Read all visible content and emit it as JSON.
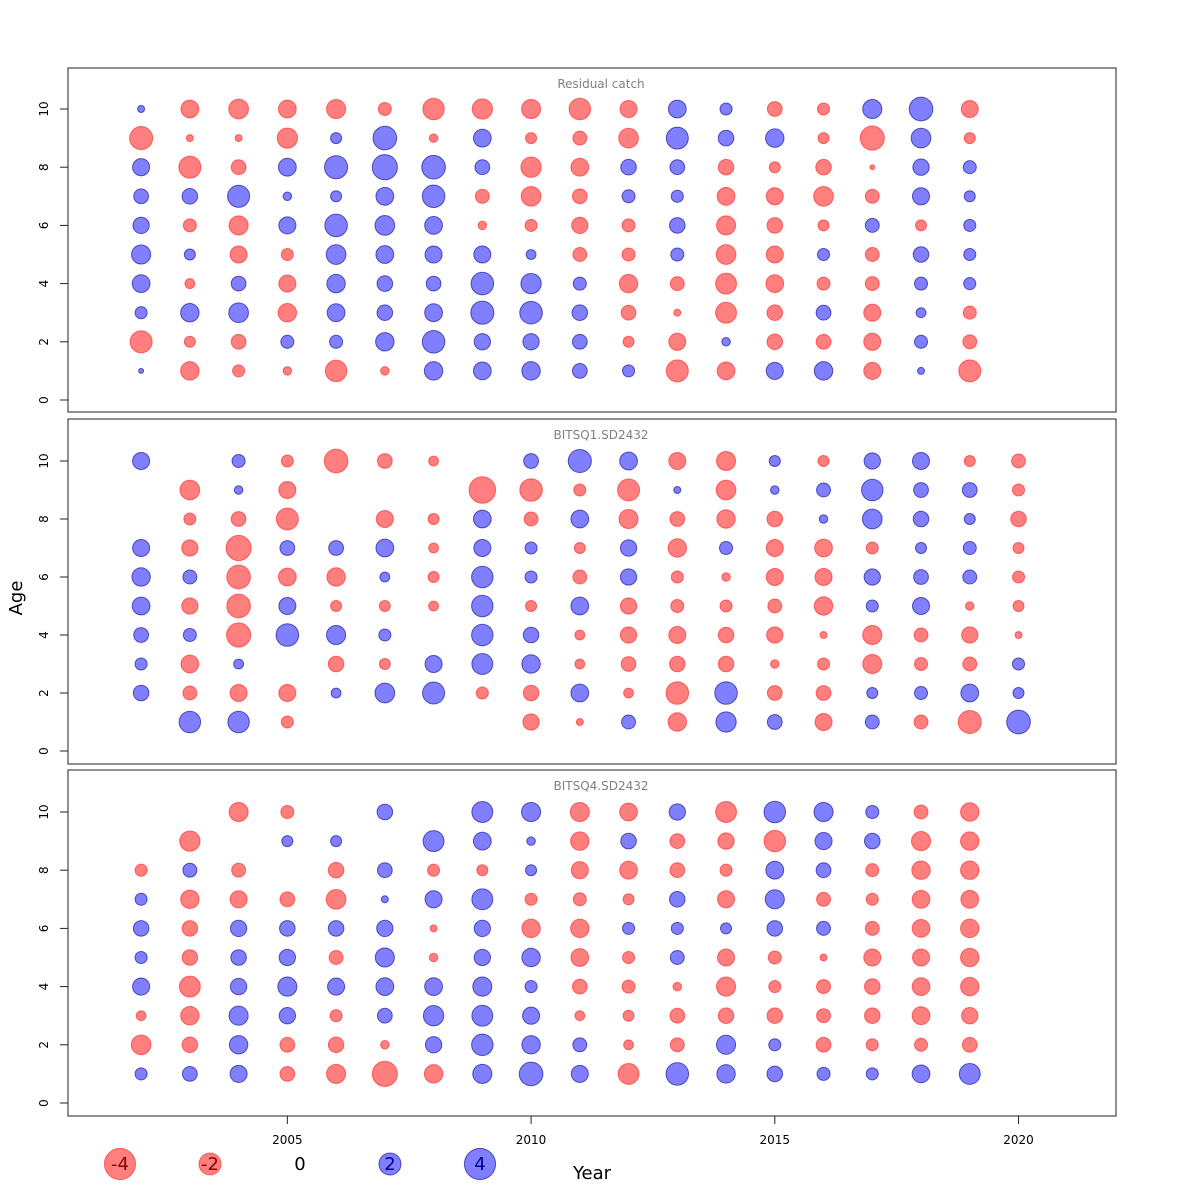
{
  "chart_data": {
    "type": "scatter",
    "style": "bubble",
    "xlabel": "Year",
    "ylabel": "Age",
    "xlim": [
      2000.5,
      2022.0
    ],
    "ylim": [
      -0.3,
      11.2
    ],
    "x_ticks": [
      2005,
      2010,
      2015,
      2020
    ],
    "y_ticks": [
      0,
      2,
      4,
      6,
      8,
      10
    ],
    "grid": false,
    "colors": {
      "negative": "#ff8080",
      "positive": "#8080ff",
      "positive_stroke": "#3333aa"
    },
    "legend": {
      "placement": "bottom-left",
      "items": [
        {
          "label": "-4",
          "value": -4
        },
        {
          "label": "-2",
          "value": -2
        },
        {
          "label": "0",
          "value": 0
        },
        {
          "label": "2",
          "value": 2
        },
        {
          "label": "4",
          "value": 4
        }
      ]
    },
    "panels": [
      {
        "title": "Residual catch",
        "years": [
          2002,
          2003,
          2004,
          2005,
          2006,
          2007,
          2008,
          2009,
          2010,
          2011,
          2012,
          2013,
          2014,
          2015,
          2016,
          2017,
          2018,
          2019
        ],
        "ages": [
          1,
          2,
          3,
          4,
          5,
          6,
          7,
          8,
          9,
          10
        ],
        "residuals": [
          [
            0.1,
            -2.0,
            0.6,
            1.3,
            1.5,
            1.1,
            0.9,
            1.2,
            -2.2,
            0.2
          ],
          [
            -1.4,
            -0.5,
            1.4,
            -0.4,
            0.5,
            -0.7,
            1.0,
            -2.0,
            -0.2,
            -1.3
          ],
          [
            -0.6,
            -0.9,
            1.6,
            0.9,
            -1.2,
            -1.5,
            2.0,
            -0.9,
            -0.2,
            -1.6
          ],
          [
            -0.3,
            0.7,
            -1.4,
            -1.2,
            -0.6,
            1.2,
            0.3,
            1.3,
            -1.7,
            -1.3
          ],
          [
            -1.9,
            0.7,
            1.3,
            1.4,
            1.6,
            2.1,
            0.5,
            2.2,
            0.5,
            -1.5
          ],
          [
            -0.3,
            1.4,
            1.0,
            1.0,
            1.3,
            1.6,
            1.3,
            2.6,
            2.3,
            -0.7
          ],
          [
            1.4,
            2.1,
            1.3,
            0.9,
            1.2,
            1.3,
            2.1,
            2.3,
            -0.3,
            -1.9
          ],
          [
            1.3,
            1.1,
            2.2,
            2.1,
            1.2,
            -0.3,
            -0.8,
            0.9,
            1.3,
            -1.7
          ],
          [
            1.4,
            1.1,
            2.1,
            1.7,
            0.4,
            -0.6,
            -1.6,
            -1.7,
            -0.5,
            -1.5
          ],
          [
            0.9,
            0.9,
            1.0,
            0.7,
            -0.8,
            -1.1,
            -0.9,
            -1.3,
            -0.8,
            -1.9
          ],
          [
            0.6,
            -0.5,
            -0.9,
            -1.4,
            -0.7,
            -0.7,
            0.7,
            1.0,
            -1.6,
            -1.2
          ],
          [
            -2.0,
            -1.2,
            -0.2,
            -0.8,
            0.7,
            1.0,
            0.6,
            0.9,
            2.0,
            1.3
          ],
          [
            -1.3,
            0.3,
            -1.8,
            -1.8,
            -1.6,
            -1.5,
            -1.3,
            -1.0,
            1.0,
            0.6
          ],
          [
            1.2,
            -1.0,
            -1.0,
            -1.3,
            -1.2,
            -1.0,
            -1.2,
            -0.5,
            1.4,
            -0.9
          ],
          [
            1.4,
            -0.9,
            0.9,
            -0.7,
            0.6,
            -0.5,
            -1.6,
            -1.0,
            -0.5,
            -0.6
          ],
          [
            -1.2,
            -1.2,
            -1.2,
            -0.8,
            -0.8,
            0.8,
            -0.8,
            -0.1,
            -2.4,
            1.5
          ],
          [
            0.2,
            0.7,
            0.4,
            0.7,
            1.0,
            -0.5,
            1.2,
            1.1,
            1.6,
            2.3
          ],
          [
            -2.0,
            -0.8,
            -0.7,
            0.6,
            0.6,
            0.6,
            0.5,
            0.7,
            -0.5,
            -1.2
          ]
        ]
      },
      {
        "title": "BITSQ1.SD2432",
        "years": [
          2002,
          2003,
          2004,
          2005,
          2006,
          2007,
          2008,
          2009,
          2010,
          2011,
          2012,
          2013,
          2014,
          2015,
          2016,
          2017,
          2018,
          2019,
          2020
        ],
        "ages": [
          1,
          2,
          3,
          4,
          5,
          6,
          7,
          8,
          9,
          10
        ],
        "residuals": [
          [
            null,
            1.0,
            0.6,
            0.9,
            1.3,
            1.4,
            1.2,
            null,
            null,
            1.2
          ],
          [
            1.9,
            -0.8,
            -1.3,
            0.7,
            -1.1,
            0.8,
            -1.1,
            -0.6,
            -1.6,
            null
          ],
          [
            1.9,
            -1.2,
            0.4,
            -2.4,
            -2.3,
            -2.3,
            -2.6,
            -0.9,
            0.3,
            0.7
          ],
          [
            -0.6,
            -1.2,
            null,
            2.1,
            1.2,
            -1.3,
            0.9,
            -2.0,
            -1.2,
            -0.6
          ],
          [
            null,
            0.4,
            -1.0,
            1.5,
            -0.5,
            -1.4,
            0.9,
            null,
            null,
            -2.3
          ],
          [
            null,
            1.6,
            -0.5,
            0.6,
            -0.5,
            0.4,
            1.3,
            -1.2,
            null,
            -0.9
          ],
          [
            null,
            2.0,
            1.2,
            null,
            -0.4,
            -0.5,
            -0.4,
            -0.5,
            null,
            -0.4
          ],
          [
            null,
            -0.6,
            1.8,
            1.9,
            1.9,
            1.9,
            1.2,
            1.3,
            -2.9,
            null
          ],
          [
            -1.1,
            -1.0,
            1.4,
            1.0,
            -0.5,
            0.6,
            0.6,
            -0.8,
            -2.1,
            0.9
          ],
          [
            -0.2,
            1.3,
            -0.4,
            -0.4,
            1.3,
            -0.8,
            -0.5,
            1.3,
            -0.6,
            2.2
          ],
          [
            0.8,
            -0.4,
            -0.9,
            -1.1,
            -1.1,
            1.1,
            1.1,
            -1.5,
            -2.0,
            1.3
          ],
          [
            -1.4,
            -2.1,
            -1.0,
            -1.2,
            -0.7,
            -0.6,
            -1.4,
            -0.9,
            0.2,
            -1.2
          ],
          [
            1.7,
            2.1,
            -1.0,
            -1.0,
            -0.6,
            -0.3,
            0.7,
            -1.4,
            -1.6,
            -1.5
          ],
          [
            0.9,
            -0.9,
            -0.3,
            -1.1,
            -0.8,
            -1.2,
            -1.2,
            -1.0,
            0.3,
            0.5
          ],
          [
            -1.2,
            -0.9,
            -0.6,
            -0.2,
            -1.4,
            -1.2,
            -1.3,
            0.3,
            0.8,
            -0.5
          ],
          [
            0.8,
            0.5,
            -1.5,
            -1.5,
            0.6,
            1.1,
            -0.6,
            1.6,
            1.9,
            1.1
          ],
          [
            -0.8,
            0.7,
            -0.7,
            -0.8,
            1.2,
            0.9,
            0.5,
            1.0,
            0.9,
            1.2
          ],
          [
            -2.2,
            1.3,
            -0.8,
            -1.1,
            -0.3,
            0.8,
            0.7,
            0.5,
            0.9,
            -0.5
          ],
          [
            2.3,
            0.5,
            0.6,
            -0.2,
            -0.5,
            -0.6,
            -0.5,
            -1.0,
            -0.6,
            -0.8
          ]
        ]
      },
      {
        "title": "BITSQ4.SD2432",
        "years": [
          2002,
          2003,
          2004,
          2005,
          2006,
          2007,
          2008,
          2009,
          2010,
          2011,
          2012,
          2013,
          2014,
          2015,
          2016,
          2017,
          2018,
          2019
        ],
        "ages": [
          1,
          2,
          3,
          4,
          5,
          6,
          7,
          8,
          9,
          10
        ],
        "residuals": [
          [
            0.6,
            -1.6,
            -0.4,
            1.2,
            0.6,
            1.0,
            0.6,
            -0.6,
            null,
            null
          ],
          [
            0.9,
            -1.0,
            -1.4,
            -1.8,
            -1.0,
            -1.0,
            -1.4,
            0.8,
            -1.7,
            null
          ],
          [
            1.2,
            1.4,
            1.5,
            1.1,
            1.0,
            1.1,
            -1.2,
            -0.8,
            null,
            -1.5
          ],
          [
            -0.9,
            -0.9,
            1.1,
            1.5,
            1.1,
            1.0,
            -0.9,
            null,
            0.5,
            -0.7
          ],
          [
            -1.5,
            -1.0,
            -0.6,
            1.2,
            -0.8,
            1.0,
            -1.6,
            -1.0,
            0.5,
            null
          ],
          [
            -2.6,
            -0.3,
            0.9,
            1.3,
            1.5,
            1.1,
            0.2,
            0.9,
            null,
            1.0
          ],
          [
            -1.4,
            1.1,
            1.7,
            1.3,
            -0.3,
            -0.2,
            1.2,
            -0.6,
            1.8,
            null
          ],
          [
            1.5,
            1.9,
            1.8,
            1.5,
            1.1,
            1.1,
            1.8,
            -0.5,
            1.3,
            1.8
          ],
          [
            2.3,
            1.4,
            1.2,
            0.6,
            1.4,
            -1.4,
            -0.6,
            0.5,
            0.3,
            1.5
          ],
          [
            1.2,
            0.8,
            -0.4,
            -0.9,
            -1.3,
            -1.4,
            -0.7,
            -1.2,
            -1.4,
            -1.5
          ],
          [
            -1.8,
            -0.4,
            -0.5,
            -0.7,
            -0.6,
            0.6,
            -0.5,
            -1.3,
            1.0,
            -1.3
          ],
          [
            2.1,
            -0.8,
            -0.9,
            -0.3,
            0.8,
            0.6,
            1.0,
            -0.9,
            -0.9,
            1.1
          ],
          [
            1.4,
            1.5,
            -1.0,
            -1.5,
            -1.2,
            0.5,
            -1.2,
            -0.6,
            -1.1,
            -1.8
          ],
          [
            1.0,
            0.6,
            -1.0,
            -0.6,
            -0.7,
            1.0,
            1.5,
            1.3,
            -1.9,
            1.9
          ],
          [
            0.7,
            -0.9,
            -0.8,
            -0.8,
            -0.2,
            0.8,
            -0.8,
            0.9,
            1.2,
            1.5
          ],
          [
            0.6,
            -0.6,
            -1.0,
            -1.0,
            -1.2,
            -0.8,
            -0.6,
            -0.7,
            1.0,
            0.7
          ],
          [
            1.3,
            -0.7,
            -1.3,
            -1.3,
            -1.2,
            -1.3,
            -1.3,
            -1.4,
            -1.5,
            -0.8
          ],
          [
            1.8,
            -0.9,
            -1.1,
            -1.4,
            -1.4,
            -1.4,
            -1.3,
            -1.4,
            -1.4,
            -1.4
          ]
        ]
      }
    ]
  }
}
